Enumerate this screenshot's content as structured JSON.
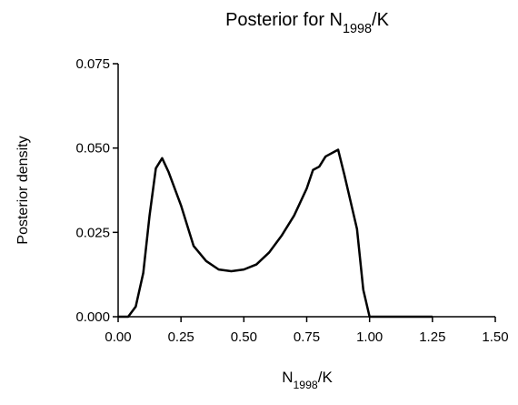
{
  "chart_data": {
    "type": "line",
    "title": [
      {
        "text": "Posterior for N"
      },
      {
        "text": "1998",
        "sub": true
      },
      {
        "text": "/K"
      }
    ],
    "xlabel": [
      {
        "text": "N"
      },
      {
        "text": "1998",
        "sub": true
      },
      {
        "text": "/K"
      }
    ],
    "ylabel": "Posterior density",
    "x": [
      0,
      0.04,
      0.07,
      0.1,
      0.125,
      0.15,
      0.175,
      0.2,
      0.25,
      0.3,
      0.35,
      0.4,
      0.45,
      0.5,
      0.55,
      0.6,
      0.65,
      0.7,
      0.75,
      0.775,
      0.8,
      0.825,
      0.875,
      0.9,
      0.95,
      0.975,
      1.0,
      1.25
    ],
    "values": [
      0,
      0,
      0.003,
      0.013,
      0.03,
      0.044,
      0.047,
      0.043,
      0.033,
      0.021,
      0.0165,
      0.014,
      0.0135,
      0.014,
      0.0155,
      0.019,
      0.024,
      0.03,
      0.038,
      0.0435,
      0.0445,
      0.0475,
      0.0495,
      0.042,
      0.026,
      0.008,
      0,
      0
    ],
    "color": "#000000",
    "xlim": [
      0,
      1.5
    ],
    "xticks": [
      {
        "value": 0,
        "label": "0.00"
      },
      {
        "value": 0.25,
        "label": "0.25"
      },
      {
        "value": 0.5,
        "label": "0.50"
      },
      {
        "value": 0.75,
        "label": "0.75"
      },
      {
        "value": 1,
        "label": "1.00"
      },
      {
        "value": 1.25,
        "label": "1.25"
      },
      {
        "value": 1.5,
        "label": "1.50"
      }
    ],
    "ylim": [
      0,
      0.075
    ],
    "yticks": [
      {
        "value": 0,
        "label": "0.000"
      },
      {
        "value": 0.025,
        "label": "0.025"
      },
      {
        "value": 0.05,
        "label": "0.050"
      },
      {
        "value": 0.075,
        "label": "0.075"
      }
    ]
  }
}
